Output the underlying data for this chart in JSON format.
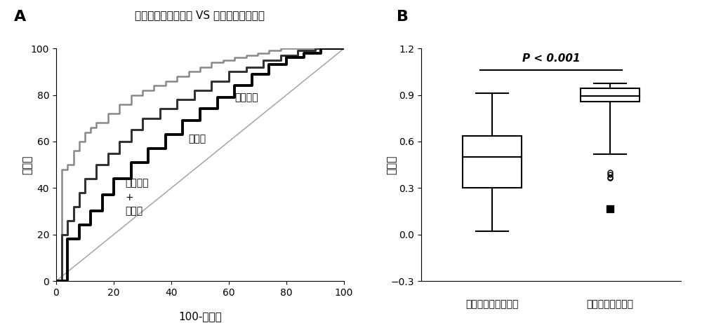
{
  "title_A": "非糖尿病视网膜病变 VS 糖尿病视网膜病变",
  "label_A": "A",
  "label_B": "B",
  "xlabel_A": "100-特异性",
  "ylabel_A": "敏感度",
  "ylabel_B": "可能性",
  "curve1_color": "#888888",
  "curve2_color": "#333333",
  "curve3_color": "#000000",
  "diag_color": "#aaaaaa",
  "anno1": "临床信息",
  "anno2": "定量值",
  "anno3_line1": "临床信息",
  "anno3_line2": "+",
  "anno3_line3": "定量值",
  "box1_stats": {
    "whislo": 0.02,
    "q1": 0.3,
    "med": 0.5,
    "q3": 0.635,
    "whishi": 0.91
  },
  "box2_stats": {
    "whislo": 0.52,
    "q1": 0.855,
    "med": 0.895,
    "q3": 0.945,
    "whishi": 0.975,
    "fliers_open": [
      0.4,
      0.385,
      0.365,
      0.37
    ],
    "fliers_filled": [
      0.165
    ]
  },
  "box_xlabels": [
    "非糖尿病视网膜病变",
    "糖尿病视网膜病变"
  ],
  "ylim_B": [
    -0.3,
    1.2
  ],
  "yticks_B": [
    -0.3,
    0.0,
    0.3,
    0.6,
    0.9,
    1.2
  ],
  "pvalue_text": "P < 0.001",
  "background_color": "#ffffff"
}
